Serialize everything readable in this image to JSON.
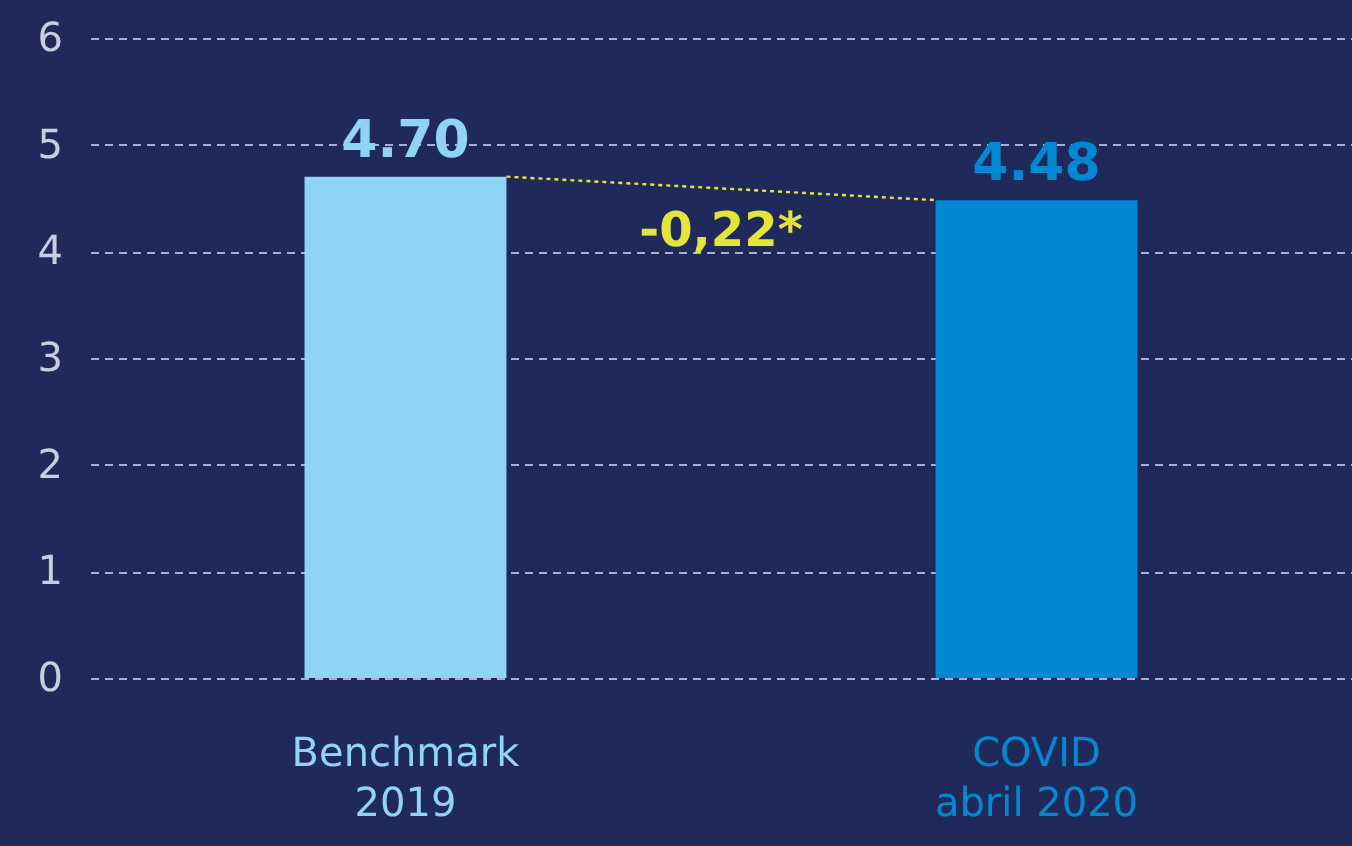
{
  "chart_data": {
    "type": "bar",
    "categories": [
      "Benchmark 2019",
      "COVID abril 2020"
    ],
    "values": [
      4.7,
      4.48
    ],
    "colors": [
      "#8fd4f5",
      "#0089d2"
    ],
    "data_labels": true,
    "value_labels": [
      "4.70",
      "4.48"
    ],
    "annotations": [
      "-0,22*"
    ],
    "ylim": [
      0,
      6
    ],
    "yticks": [
      0,
      1,
      2,
      3,
      4,
      5,
      6
    ],
    "grid": "y"
  }
}
